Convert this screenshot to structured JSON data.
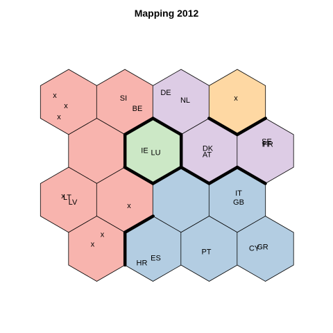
{
  "chart_data": {
    "type": "heatmap",
    "title": "Mapping 2012",
    "grid": "hexagonal",
    "rows": 4,
    "cols": 4,
    "cluster_colors": {
      "red": "#F8B4AE",
      "purple": "#DDCCE5",
      "orange": "#FED8A3",
      "green": "#CCE8C6",
      "blue": "#B3CDE2"
    },
    "cells": [
      {
        "row": 0,
        "col": 0,
        "cluster": "red",
        "labels": [
          "x",
          "x",
          "x"
        ]
      },
      {
        "row": 0,
        "col": 1,
        "cluster": "red",
        "labels": [
          "SI",
          "BE"
        ]
      },
      {
        "row": 0,
        "col": 2,
        "cluster": "purple",
        "labels": [
          "DE",
          "NL"
        ]
      },
      {
        "row": 0,
        "col": 3,
        "cluster": "orange",
        "labels": [
          "x"
        ]
      },
      {
        "row": 1,
        "col": 0,
        "cluster": "red",
        "labels": []
      },
      {
        "row": 1,
        "col": 1,
        "cluster": "green",
        "labels": [
          "IE",
          "LU"
        ]
      },
      {
        "row": 1,
        "col": 2,
        "cluster": "purple",
        "labels": [
          "DK",
          "AT"
        ]
      },
      {
        "row": 1,
        "col": 3,
        "cluster": "purple",
        "labels": [
          "SE",
          "FI",
          "FR"
        ]
      },
      {
        "row": 2,
        "col": 0,
        "cluster": "red",
        "labels": [
          "x",
          "LT",
          "LV"
        ]
      },
      {
        "row": 2,
        "col": 1,
        "cluster": "red",
        "labels": [
          "x"
        ]
      },
      {
        "row": 2,
        "col": 2,
        "cluster": "blue",
        "labels": []
      },
      {
        "row": 2,
        "col": 3,
        "cluster": "blue",
        "labels": [
          "IT",
          "GB"
        ]
      },
      {
        "row": 3,
        "col": 0,
        "cluster": "red",
        "labels": [
          "x",
          "x"
        ]
      },
      {
        "row": 3,
        "col": 1,
        "cluster": "blue",
        "labels": [
          "HR",
          "ES"
        ]
      },
      {
        "row": 3,
        "col": 2,
        "cluster": "blue",
        "labels": [
          "PT"
        ]
      },
      {
        "row": 3,
        "col": 3,
        "cluster": "blue",
        "labels": [
          "CY",
          "GR"
        ]
      }
    ]
  }
}
